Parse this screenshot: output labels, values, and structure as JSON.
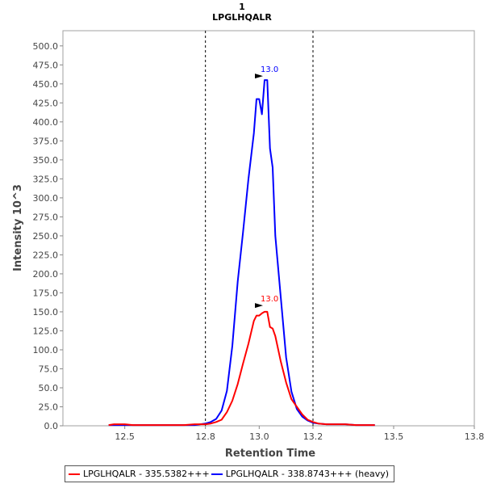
{
  "chart_data": {
    "type": "line",
    "title": "1",
    "subtitle": "LPGLHQALR",
    "xlabel": "Retention Time",
    "ylabel": "Intensity 10^3",
    "xlim": [
      12.27,
      13.8
    ],
    "ylim": [
      0,
      500
    ],
    "xticks": [
      12.5,
      12.8,
      13.0,
      13.2,
      13.5,
      13.8
    ],
    "xtick_labels": [
      "12.5",
      "12.8",
      "13.0",
      "13.2",
      "13.5",
      "13.8"
    ],
    "yticks": [
      0,
      25,
      50,
      75,
      100,
      125,
      150,
      175,
      200,
      225,
      250,
      275,
      300,
      325,
      350,
      375,
      400,
      425,
      450,
      475,
      500
    ],
    "ytick_labels": [
      "0.0",
      "25.0",
      "50.0",
      "75.0",
      "100.0",
      "125.0",
      "150.0",
      "175.0",
      "200.0",
      "225.0",
      "250.0",
      "275.0",
      "300.0",
      "325.0",
      "350.0",
      "375.0",
      "400.0",
      "425.0",
      "450.0",
      "475.0",
      "500.0"
    ],
    "vlines": [
      12.8,
      13.2
    ],
    "grid": false,
    "legend_placement": "bottom",
    "series": [
      {
        "name": "LPGLHQALR - 335.5382+++",
        "color": "#ff0000",
        "x": [
          12.44,
          12.46,
          12.48,
          12.5,
          12.53,
          12.56,
          12.6,
          12.64,
          12.68,
          12.72,
          12.76,
          12.8,
          12.82,
          12.84,
          12.86,
          12.88,
          12.9,
          12.92,
          12.94,
          12.96,
          12.98,
          12.99,
          13.0,
          13.01,
          13.02,
          13.03,
          13.04,
          13.05,
          13.06,
          13.08,
          13.1,
          13.12,
          13.14,
          13.16,
          13.18,
          13.2,
          13.22,
          13.25,
          13.28,
          13.32,
          13.36,
          13.4,
          13.43
        ],
        "y": [
          1,
          2,
          2,
          2,
          1,
          1,
          1,
          1,
          1,
          1,
          2,
          2,
          3,
          5,
          8,
          18,
          33,
          55,
          82,
          108,
          138,
          145,
          145,
          148,
          150,
          150,
          130,
          128,
          118,
          85,
          57,
          35,
          25,
          15,
          8,
          5,
          3,
          2,
          2,
          2,
          1,
          1,
          1
        ],
        "annotation": "13.0",
        "annotation_x": 13.02,
        "annotation_y": 153
      },
      {
        "name": "LPGLHQALR - 338.8743+++ (heavy)",
        "color": "#0000ff",
        "x": [
          12.44,
          12.46,
          12.48,
          12.5,
          12.53,
          12.56,
          12.6,
          12.64,
          12.68,
          12.72,
          12.76,
          12.8,
          12.82,
          12.84,
          12.86,
          12.88,
          12.9,
          12.92,
          12.94,
          12.96,
          12.98,
          12.99,
          13.0,
          13.01,
          13.02,
          13.03,
          13.04,
          13.05,
          13.06,
          13.08,
          13.1,
          13.12,
          13.14,
          13.16,
          13.18,
          13.2,
          13.22,
          13.25,
          13.28,
          13.32,
          13.36,
          13.4,
          13.43
        ],
        "y": [
          1,
          1,
          1,
          1,
          1,
          1,
          1,
          1,
          1,
          1,
          1,
          3,
          5,
          9,
          20,
          46,
          105,
          190,
          255,
          325,
          385,
          430,
          430,
          410,
          455,
          455,
          365,
          340,
          250,
          170,
          90,
          45,
          22,
          12,
          7,
          4,
          3,
          2,
          2,
          2,
          1,
          1,
          1
        ],
        "annotation": "13.0",
        "annotation_x": 13.02,
        "annotation_y": 455
      }
    ]
  }
}
